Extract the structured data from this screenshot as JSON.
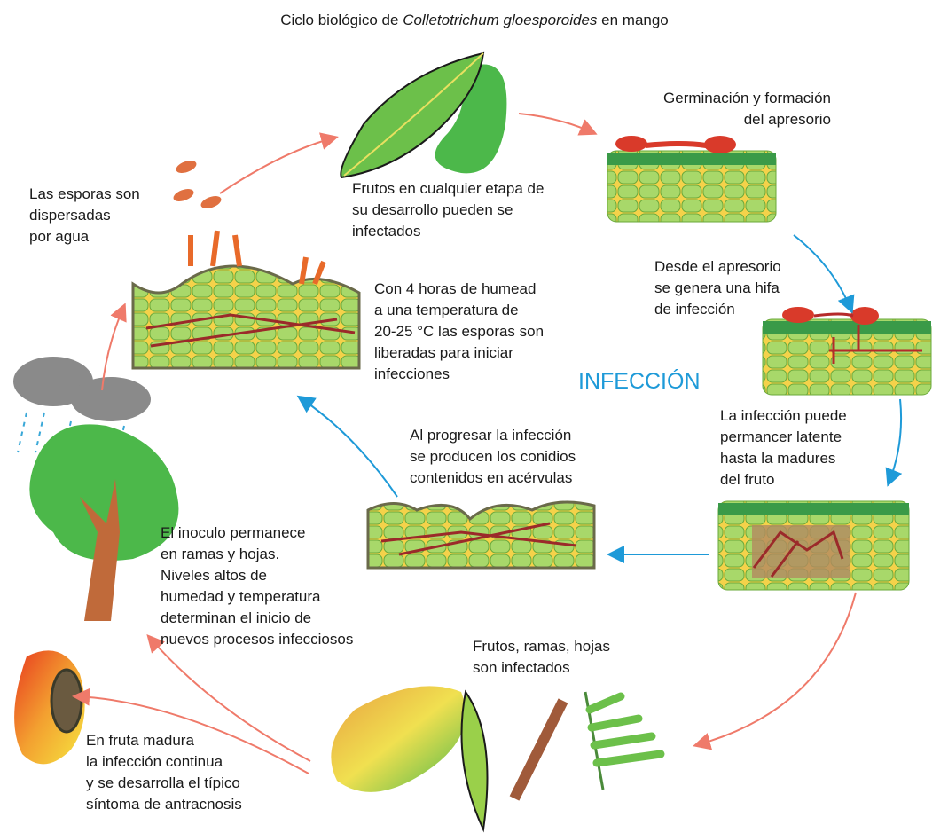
{
  "title": {
    "prefix": "Ciclo biológico de ",
    "species": "Colletotrichum gloesporoides",
    "suffix": " en mango"
  },
  "nodes": [
    {
      "lines": [
        "Frutos en cualquier etapa de",
        "su desarrollo pueden se",
        "infectados"
      ]
    },
    {
      "lines": [
        "Germinación y formación",
        "del apresorio"
      ]
    },
    {
      "lines": [
        "Desde el apresorio",
        "se genera una hifa",
        "de infección"
      ]
    },
    {
      "lines": [
        "INFECCIÓN"
      ]
    },
    {
      "lines": [
        "La infección puede",
        "permancer latente",
        "hasta la madures",
        "del fruto"
      ]
    },
    {
      "lines": [
        "Frutos, ramas, hojas",
        "son infectados"
      ]
    },
    {
      "lines": [
        "En fruta madura",
        "la infección continua",
        "y se desarrolla el típico",
        "síntoma de antracnosis"
      ]
    },
    {
      "lines": [
        "El inoculo permanece",
        "en ramas y hojas.",
        "Niveles altos de",
        "humedad y temperatura",
        "determinan el inicio de",
        "nuevos procesos infecciosos"
      ]
    },
    {
      "lines": [
        "Al progresar la infección",
        "se producen los conidios",
        "contenidos en acérvulas"
      ]
    },
    {
      "lines": [
        "Con 4 horas de humead",
        "a una temperatura de",
        "20-25 °C las esporas son",
        "liberadas para iniciar",
        "infecciones"
      ]
    },
    {
      "lines": [
        "Las esporas son",
        "dispersadas",
        "por agua"
      ]
    }
  ]
}
